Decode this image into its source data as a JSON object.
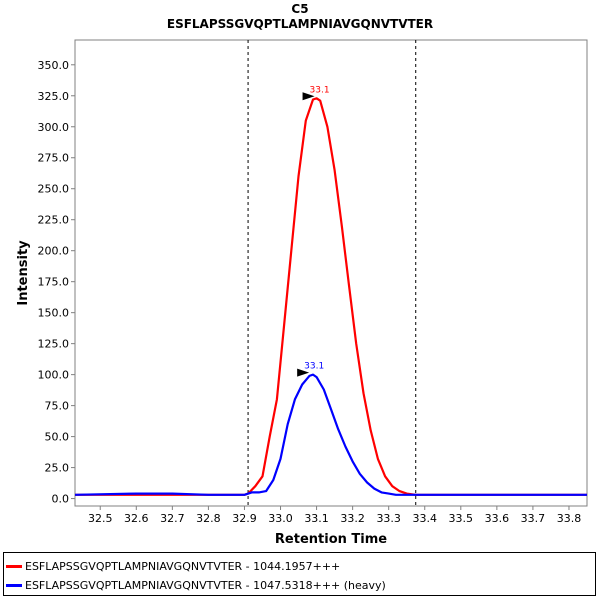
{
  "chart_data": {
    "type": "line",
    "title": "C5",
    "subtitle": "ESFLAPSSGVQPTLAMPNIAVGQNVTVTER",
    "xlabel": "Retention Time",
    "ylabel": "Intensity",
    "xlim": [
      32.43,
      33.85
    ],
    "ylim": [
      -6,
      370
    ],
    "x_ticks": [
      "32.5",
      "32.6",
      "32.7",
      "32.8",
      "32.9",
      "33.0",
      "33.1",
      "33.2",
      "33.3",
      "33.4",
      "33.5",
      "33.6",
      "33.7",
      "33.8"
    ],
    "y_ticks": [
      "0.0",
      "25.0",
      "50.0",
      "75.0",
      "100.0",
      "125.0",
      "150.0",
      "175.0",
      "200.0",
      "225.0",
      "250.0",
      "275.0",
      "300.0",
      "325.0",
      "350.0"
    ],
    "boundaries": [
      32.91,
      33.375
    ],
    "grid": false,
    "legend_position": "bottom",
    "series": [
      {
        "name": "ESFLAPSSGVQPTLAMPNIAVGQNVTVTER - 1044.1957+++",
        "color": "#ff0000",
        "peak_label": "33.1",
        "peak": [
          33.1,
          323.0
        ],
        "x": [
          32.43,
          32.6,
          32.7,
          32.8,
          32.9,
          32.91,
          32.93,
          32.95,
          32.97,
          32.99,
          33.01,
          33.03,
          33.05,
          33.07,
          33.09,
          33.1,
          33.11,
          33.13,
          33.15,
          33.17,
          33.19,
          33.21,
          33.23,
          33.25,
          33.27,
          33.29,
          33.31,
          33.33,
          33.35,
          33.375,
          33.4,
          33.45,
          33.5,
          33.6,
          33.7,
          33.85
        ],
        "y": [
          3,
          3,
          3,
          3,
          3,
          4,
          10,
          18,
          50,
          80,
          140,
          200,
          260,
          305,
          322,
          323,
          321,
          300,
          265,
          220,
          172,
          125,
          85,
          55,
          32,
          18,
          10,
          6,
          4,
          3,
          3,
          3,
          3,
          3,
          3,
          3
        ]
      },
      {
        "name": "ESFLAPSSGVQPTLAMPNIAVGQNVTVTER - 1047.5318+++ (heavy)",
        "color": "#0000ff",
        "peak_label": "33.1",
        "peak": [
          33.085,
          100.0
        ],
        "x": [
          32.43,
          32.6,
          32.7,
          32.8,
          32.9,
          32.92,
          32.94,
          32.96,
          32.98,
          33.0,
          33.02,
          33.04,
          33.06,
          33.08,
          33.09,
          33.1,
          33.12,
          33.14,
          33.16,
          33.18,
          33.2,
          33.22,
          33.24,
          33.26,
          33.28,
          33.3,
          33.32,
          33.34,
          33.375,
          33.4,
          33.5,
          33.6,
          33.7,
          33.85
        ],
        "y": [
          3,
          4,
          4,
          3,
          3,
          5,
          5,
          6,
          15,
          32,
          60,
          80,
          92,
          99,
          100,
          98,
          88,
          72,
          56,
          42,
          30,
          20,
          13,
          8,
          5,
          4,
          3,
          3,
          3,
          3,
          3,
          3,
          3,
          3
        ]
      }
    ]
  }
}
